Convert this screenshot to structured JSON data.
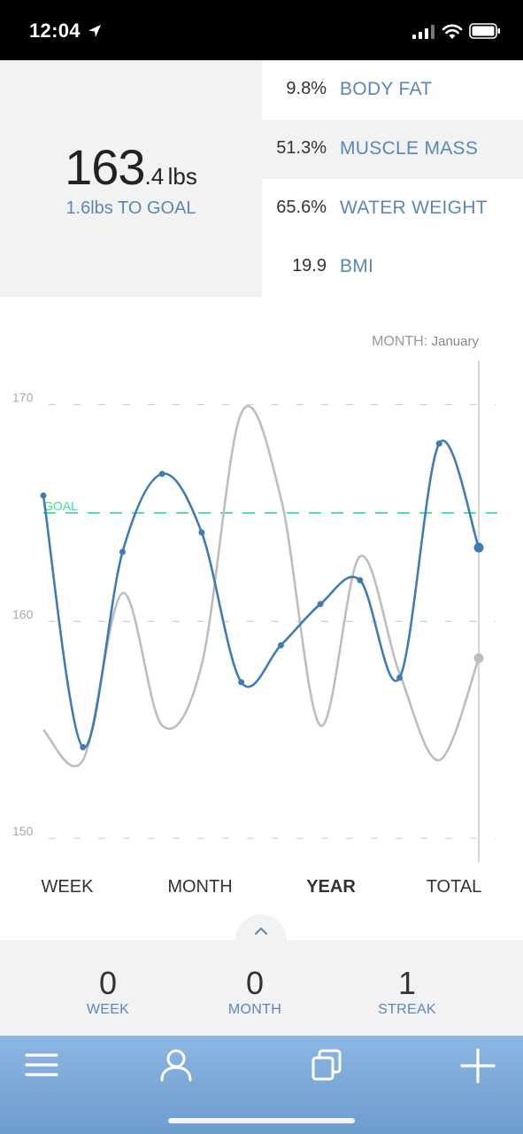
{
  "status_bar": {
    "time": "12:04"
  },
  "summary": {
    "weight_main": "163",
    "weight_decimal": ".4",
    "weight_unit": "lbs",
    "to_goal": "1.6lbs TO GOAL",
    "metrics": [
      {
        "value": "9.8%",
        "label": "BODY FAT"
      },
      {
        "value": "51.3%",
        "label": "MUSCLE MASS"
      },
      {
        "value": "65.6%",
        "label": "WATER WEIGHT"
      },
      {
        "value": "19.9",
        "label": "BMI"
      }
    ]
  },
  "chart": {
    "month_prefix": "MONTH:",
    "month_value": "January",
    "goal_label": "GOAL"
  },
  "chart_data": {
    "type": "line",
    "title": "",
    "xlabel": "",
    "ylabel": "",
    "ylim": [
      149.6,
      170.8
    ],
    "yticks": [
      150,
      160,
      170
    ],
    "goal": 165,
    "series": [
      {
        "name": "current",
        "color": "#3f7cb5",
        "values": [
          165.8,
          154.2,
          163.2,
          166.8,
          164.1,
          157.2,
          158.9,
          160.8,
          161.9,
          157.4,
          168.2,
          163.4
        ]
      },
      {
        "name": "previous",
        "color": "#bdbdbd",
        "values": [
          155.0,
          153.6,
          161.3,
          155.2,
          158.0,
          169.6,
          165.7,
          155.2,
          163.0,
          157.6,
          153.6,
          158.3
        ]
      }
    ]
  },
  "period_tabs": [
    {
      "label": "WEEK",
      "active": false
    },
    {
      "label": "MONTH",
      "active": false
    },
    {
      "label": "YEAR",
      "active": true
    },
    {
      "label": "TOTAL",
      "active": false
    }
  ],
  "stats": [
    {
      "value": "0",
      "label": "WEEK"
    },
    {
      "value": "0",
      "label": "MONTH"
    },
    {
      "value": "1",
      "label": "STREAK"
    }
  ],
  "nav": [
    "menu-icon",
    "profile-icon",
    "copy-icon",
    "add-icon"
  ],
  "colors": {
    "accent": "#5b87b8",
    "line": "#3f7cb5",
    "goal": "#3ddc97",
    "nav": "#7aa8d9"
  }
}
